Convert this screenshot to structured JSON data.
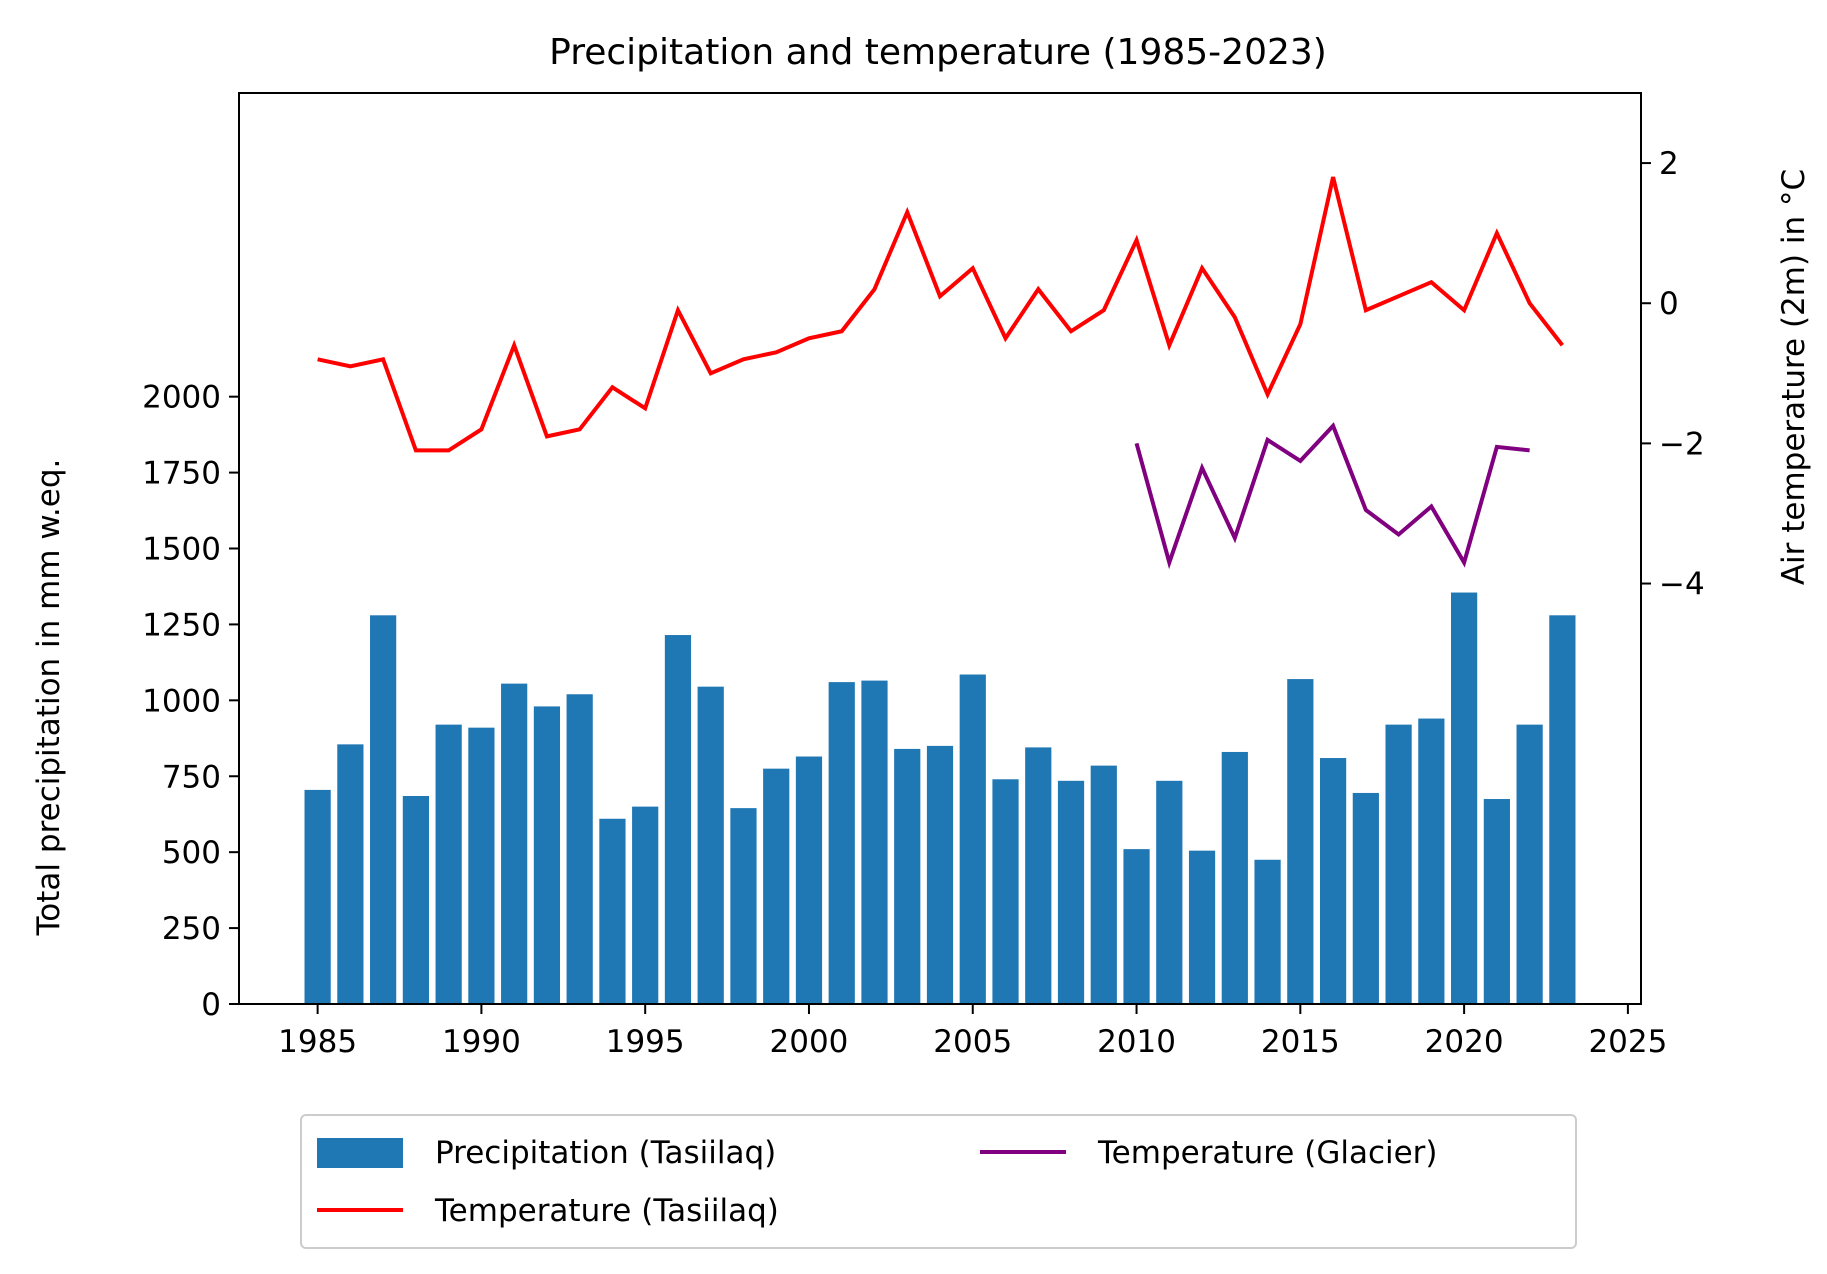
{
  "chart_data": {
    "type": "bar+line",
    "title": "Precipitation and temperature (1985-2023)",
    "ylabel": "Total precipitation in mm w.eq.",
    "y2label": "Air temperature (2m) in °C",
    "xlim": [
      1982.6,
      2025.4
    ],
    "ylim": [
      0,
      3000
    ],
    "y2lim": [
      -10,
      3
    ],
    "x_ticks": [
      1985,
      1990,
      1995,
      2000,
      2005,
      2010,
      2015,
      2020,
      2025
    ],
    "y_ticks": [
      0,
      250,
      500,
      750,
      1000,
      1250,
      1500,
      1750,
      2000
    ],
    "y2_ticks": [
      2,
      0,
      -2,
      -4
    ],
    "y2_tick_labels": [
      "2",
      "0",
      "−2",
      "−4"
    ],
    "legend_position": "below",
    "grid": false,
    "bars": {
      "name": "Precipitation (Tasiilaq)",
      "color": "#1f77b4",
      "x": [
        1985,
        1986,
        1987,
        1988,
        1989,
        1990,
        1991,
        1992,
        1993,
        1994,
        1995,
        1996,
        1997,
        1998,
        1999,
        2000,
        2001,
        2002,
        2003,
        2004,
        2005,
        2006,
        2007,
        2008,
        2009,
        2010,
        2011,
        2012,
        2013,
        2014,
        2015,
        2016,
        2017,
        2018,
        2019,
        2020,
        2021,
        2022,
        2023
      ],
      "values": [
        705,
        855,
        1280,
        685,
        920,
        910,
        1055,
        980,
        1020,
        610,
        650,
        1215,
        1045,
        645,
        775,
        815,
        1060,
        1065,
        840,
        850,
        1085,
        740,
        845,
        735,
        785,
        510,
        735,
        505,
        830,
        475,
        1070,
        810,
        695,
        920,
        940,
        1355,
        675,
        920,
        1280
      ]
    },
    "series": [
      {
        "name": "Temperature (Tasiilaq)",
        "color": "#ff0000",
        "x": [
          1985,
          1986,
          1987,
          1988,
          1989,
          1990,
          1991,
          1992,
          1993,
          1994,
          1995,
          1996,
          1997,
          1998,
          1999,
          2000,
          2001,
          2002,
          2003,
          2004,
          2005,
          2006,
          2007,
          2008,
          2009,
          2010,
          2011,
          2012,
          2013,
          2014,
          2015,
          2016,
          2017,
          2018,
          2019,
          2020,
          2021,
          2022,
          2023
        ],
        "values": [
          -0.8,
          -0.9,
          -0.8,
          -2.1,
          -2.1,
          -1.8,
          -0.6,
          -1.9,
          -1.8,
          -1.2,
          -1.5,
          -0.1,
          -1.0,
          -0.8,
          -0.7,
          -0.5,
          -0.4,
          0.2,
          1.3,
          0.1,
          0.5,
          -0.5,
          0.2,
          -0.4,
          -0.1,
          0.9,
          -0.6,
          0.5,
          -0.2,
          -1.3,
          -0.3,
          1.8,
          -0.1,
          0.1,
          0.3,
          -0.1,
          1.0,
          0.0,
          -0.6
        ]
      },
      {
        "name": "Temperature (Glacier)",
        "color": "#800080",
        "x": [
          2010,
          2011,
          2012,
          2013,
          2014,
          2015,
          2016,
          2017,
          2018,
          2019,
          2020,
          2021,
          2022
        ],
        "values": [
          -2.0,
          -3.7,
          -2.35,
          -3.35,
          -1.95,
          -2.25,
          -1.75,
          -2.95,
          -3.3,
          -2.9,
          -3.7,
          -2.05,
          -2.1
        ]
      }
    ]
  }
}
